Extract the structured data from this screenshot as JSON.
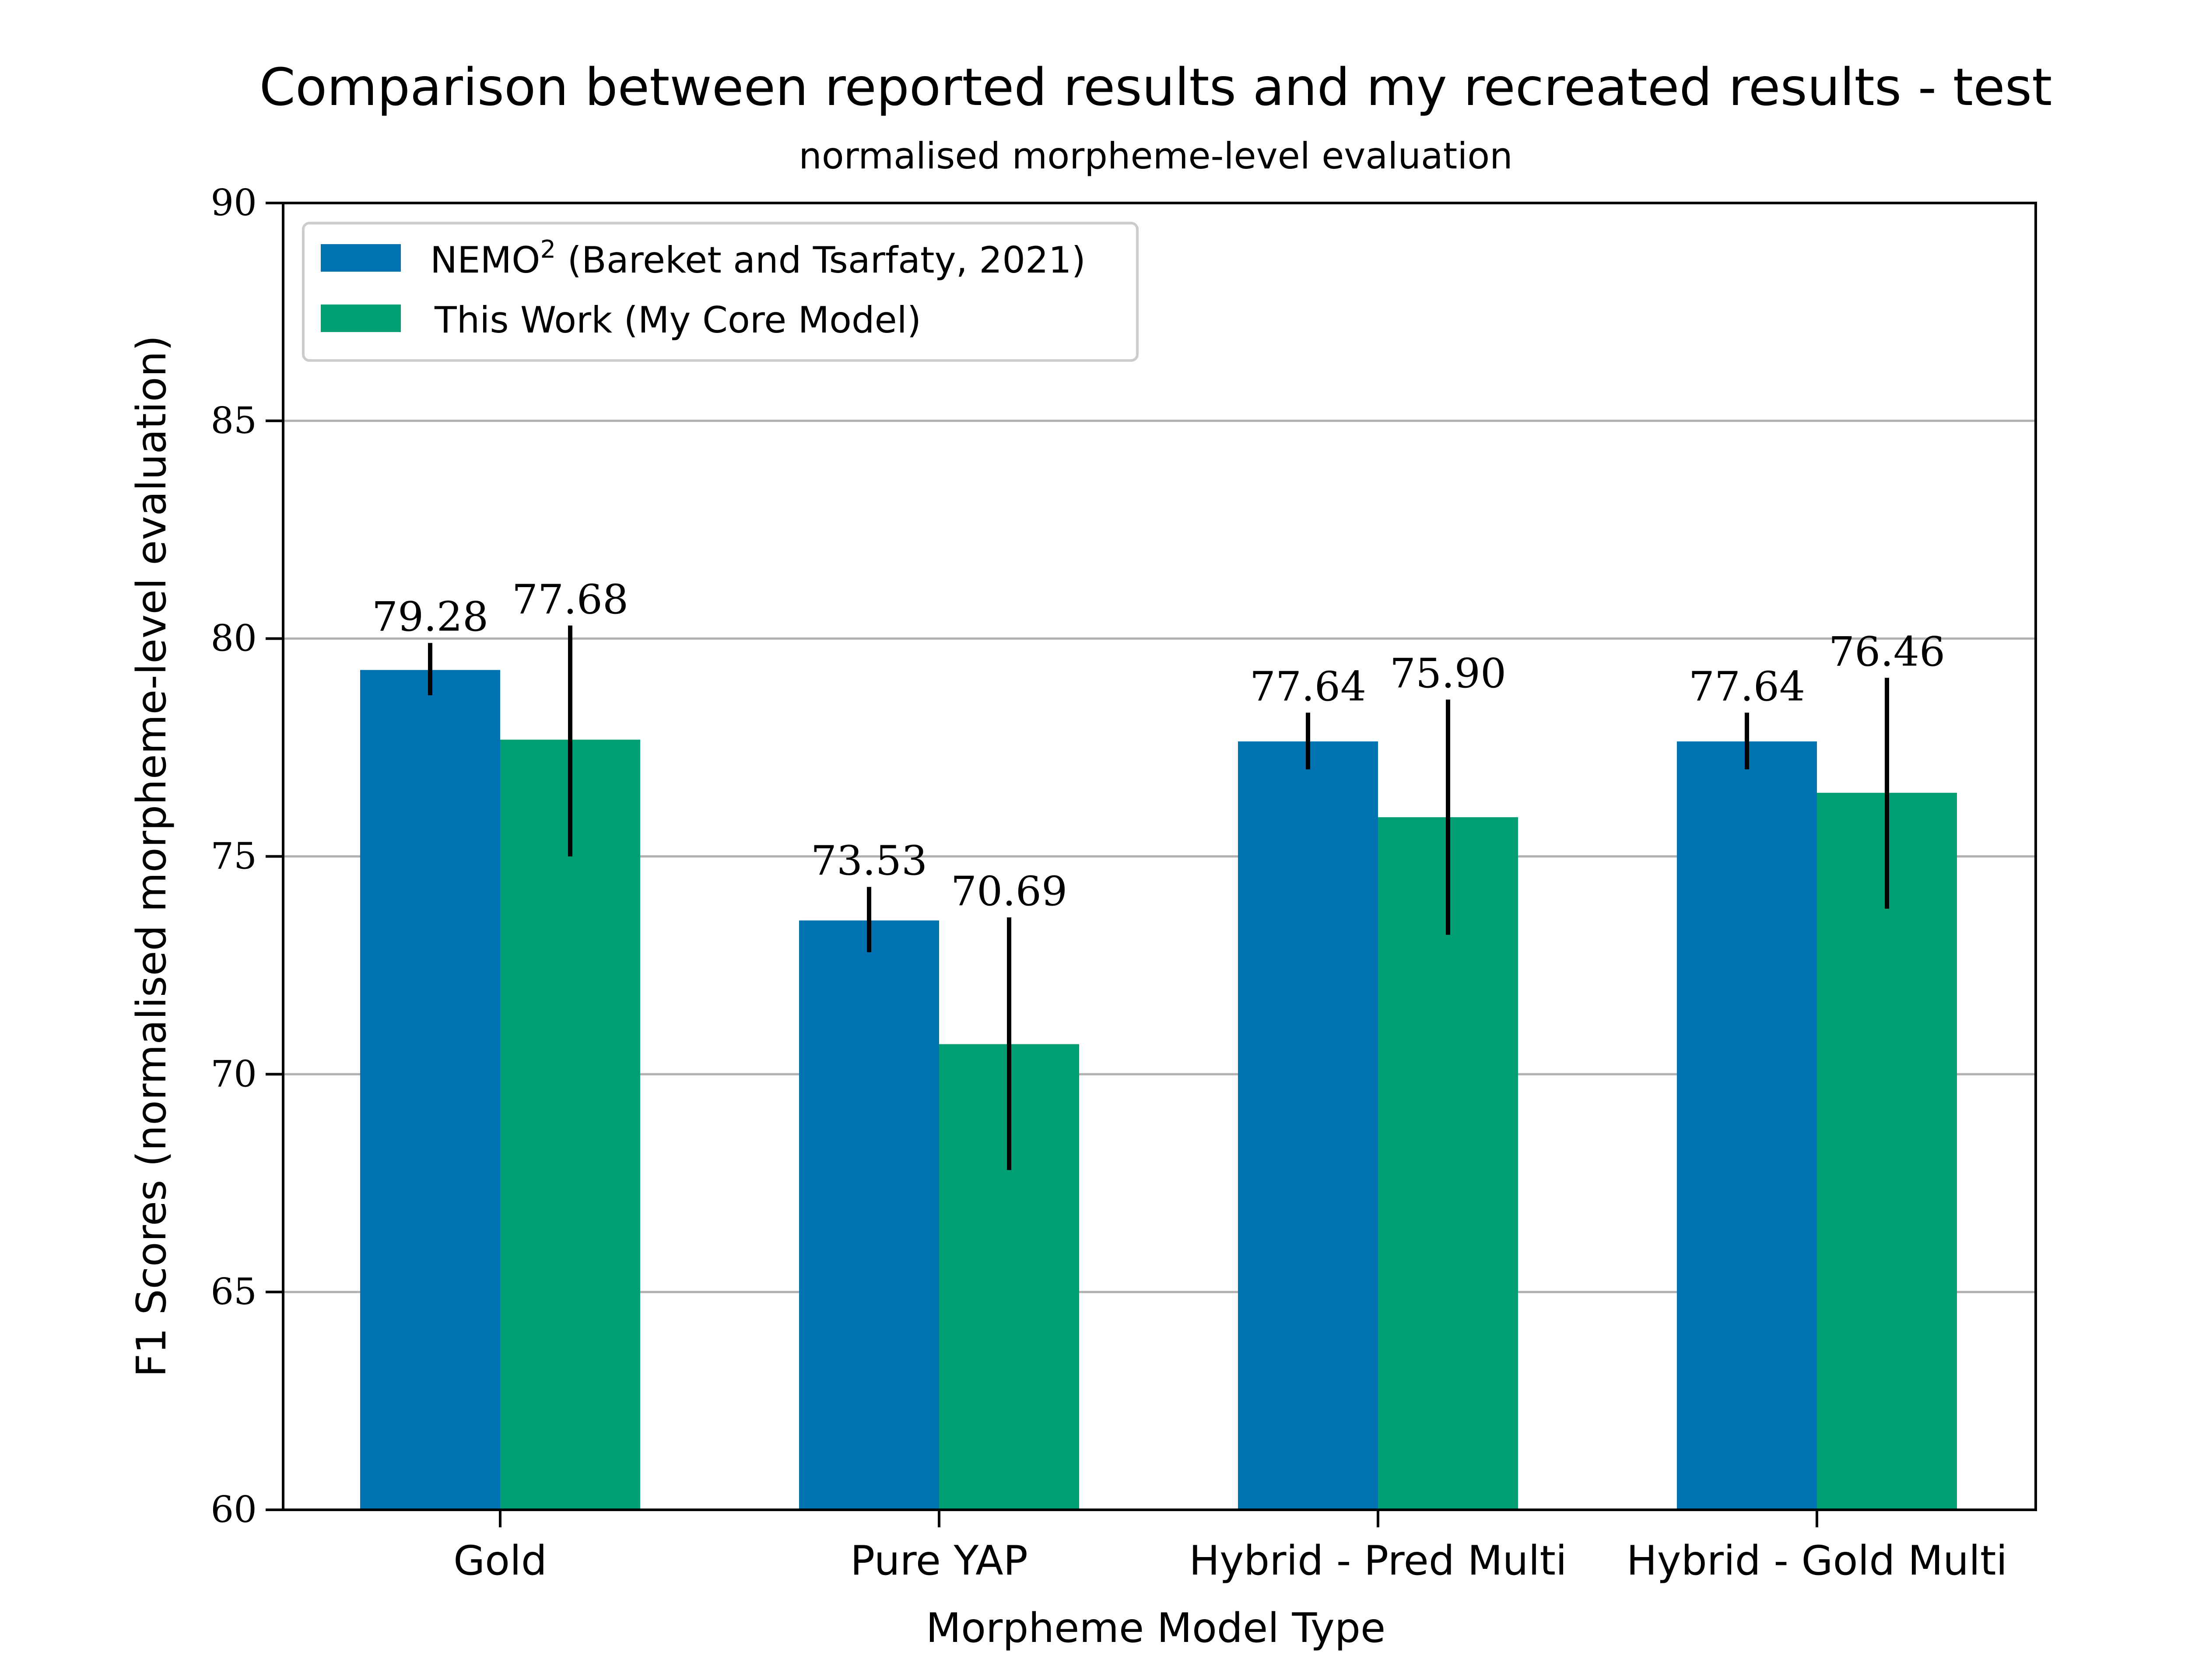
{
  "chart_data": {
    "type": "bar",
    "title": "Comparison between reported results and my recreated results - test",
    "subtitle": "normalised morpheme-level evaluation",
    "xlabel": "Morpheme Model Type",
    "ylabel": "F1 Scores (normalised morpheme-level evaluation)",
    "ylim": [
      60,
      90
    ],
    "yticks": [
      60,
      65,
      70,
      75,
      80,
      85,
      90
    ],
    "grid": "horizontal",
    "legend_position": "top-left",
    "categories": [
      "Gold",
      "Pure YAP",
      "Hybrid - Pred Multi",
      "Hybrid - Gold Multi"
    ],
    "series": [
      {
        "name": "NEMO",
        "name_superscript": "2",
        "name_suffix": " (Bareket and Tsarfaty, 2021)",
        "color": "#0072b2",
        "values": [
          79.28,
          73.53,
          77.64,
          77.64
        ],
        "labels": [
          "79.28",
          "73.53",
          "77.64",
          "77.64"
        ],
        "error_low": [
          78.7,
          72.8,
          77.0,
          77.0
        ],
        "error_high": [
          79.9,
          74.3,
          78.3,
          78.3
        ]
      },
      {
        "name": "This Work (My Core Model)",
        "color": "#009e73",
        "values": [
          77.68,
          70.69,
          75.9,
          76.46
        ],
        "labels": [
          "77.68",
          "70.69",
          "75.90",
          "76.46"
        ],
        "error_low": [
          75.0,
          67.8,
          73.2,
          73.8
        ],
        "error_high": [
          80.3,
          73.6,
          78.6,
          79.1
        ]
      }
    ]
  }
}
